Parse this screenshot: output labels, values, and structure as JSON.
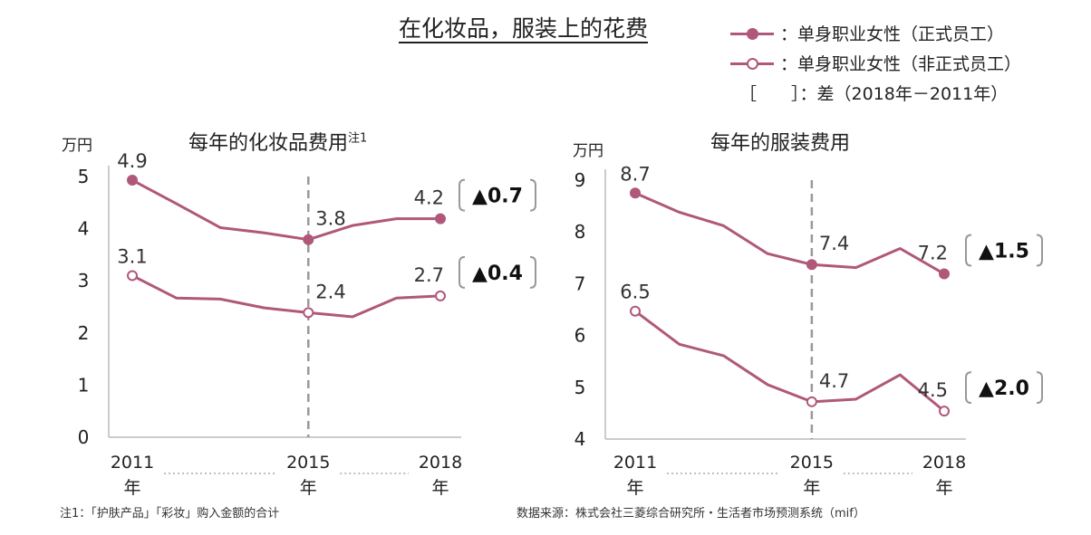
{
  "title": "在化妆品，服装上的花费",
  "legend": {
    "fulltime": "单身职业女性（正式员工）",
    "nonfulltime": "单身职业女性（非正式员工）",
    "diff": "［　　］：差（2018年－2011年）",
    "colon": "："
  },
  "colors": {
    "line": "#b0587a",
    "dashed": "#999999",
    "bracket": "#999999"
  },
  "chart_data": [
    {
      "type": "line",
      "title": "每年的化妆品费用",
      "title_note": "注1",
      "ylabel": "万円",
      "ylim": [
        0,
        5
      ],
      "yticks": [
        "0",
        "1",
        "2",
        "3",
        "4",
        "5"
      ],
      "x": [
        2011,
        2012,
        2013,
        2014,
        2015,
        2016,
        2017,
        2018
      ],
      "xtick_labels": [
        {
          "x": 2011,
          "year": "2011",
          "unit": "年"
        },
        {
          "x": 2015,
          "year": "2015",
          "unit": "年"
        },
        {
          "x": 2018,
          "year": "2018",
          "unit": "年"
        }
      ],
      "reference_line_x": 2015,
      "series": [
        {
          "name": "单身职业女性（正式员工）",
          "marker": "filled",
          "values": [
            4.93,
            4.48,
            4.02,
            3.92,
            3.79,
            4.06,
            4.19,
            4.19
          ]
        },
        {
          "name": "单身职业女性（非正式员工）",
          "marker": "open",
          "values": [
            3.1,
            2.67,
            2.65,
            2.48,
            2.39,
            2.31,
            2.67,
            2.71
          ]
        }
      ],
      "data_labels": [
        {
          "text": "4.9",
          "series": 0,
          "x": 2011
        },
        {
          "text": "3.8",
          "series": 0,
          "x": 2015
        },
        {
          "text": "4.2",
          "series": 0,
          "x": 2018
        },
        {
          "text": "3.1",
          "series": 1,
          "x": 2011
        },
        {
          "text": "2.4",
          "series": 1,
          "x": 2015
        },
        {
          "text": "2.7",
          "series": 1,
          "x": 2018
        }
      ],
      "diffs": [
        {
          "text": "▲0.7",
          "series": 0
        },
        {
          "text": "▲0.4",
          "series": 1
        }
      ],
      "footnote": "注1：「护肤产品」「彩妆」购入金额的合计"
    },
    {
      "type": "line",
      "title": "每年的服装费用",
      "ylabel": "万円",
      "ylim": [
        4,
        9
      ],
      "yticks": [
        "4",
        "5",
        "6",
        "7",
        "8",
        "9"
      ],
      "x": [
        2011,
        2012,
        2013,
        2014,
        2015,
        2016,
        2017,
        2018
      ],
      "xtick_labels": [
        {
          "x": 2011,
          "year": "2011",
          "unit": "年"
        },
        {
          "x": 2015,
          "year": "2015",
          "unit": "年"
        },
        {
          "x": 2018,
          "year": "2018",
          "unit": "年"
        }
      ],
      "reference_line_x": 2015,
      "series": [
        {
          "name": "单身职业女性（正式员工）",
          "marker": "filled",
          "values": [
            8.75,
            8.38,
            8.12,
            7.58,
            7.37,
            7.31,
            7.68,
            7.19
          ]
        },
        {
          "name": "单身职业女性（非正式员工）",
          "marker": "open",
          "values": [
            6.47,
            5.83,
            5.61,
            5.05,
            4.72,
            4.77,
            5.24,
            4.54
          ]
        }
      ],
      "data_labels": [
        {
          "text": "8.7",
          "series": 0,
          "x": 2011
        },
        {
          "text": "7.4",
          "series": 0,
          "x": 2015
        },
        {
          "text": "7.2",
          "series": 0,
          "x": 2018
        },
        {
          "text": "6.5",
          "series": 1,
          "x": 2011
        },
        {
          "text": "4.7",
          "series": 1,
          "x": 2015
        },
        {
          "text": "4.5",
          "series": 1,
          "x": 2018
        }
      ],
      "diffs": [
        {
          "text": "▲1.5",
          "series": 0
        },
        {
          "text": "▲2.0",
          "series": 1
        }
      ],
      "footnote": "数据来源：株式会社三菱综合研究所・生活者市场预测系统（mif）"
    }
  ]
}
